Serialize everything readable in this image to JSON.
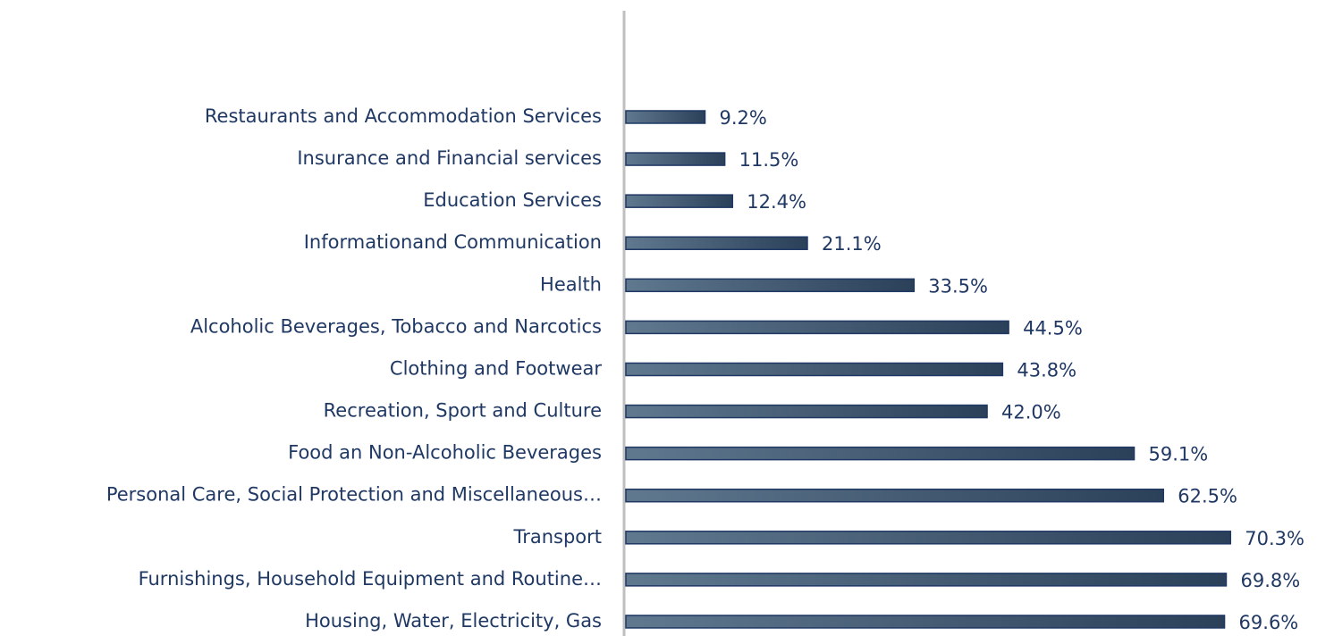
{
  "chart_data": {
    "type": "bar",
    "orientation": "horizontal",
    "categories": [
      "Restaurants and Accommodation Services",
      "Insurance and Financial services",
      "Education Services",
      "Informationand Communication",
      "Health",
      "Alcoholic Beverages, Tobacco and Narcotics",
      "Clothing and Footwear",
      "Recreation, Sport and Culture",
      "Food an Non-Alcoholic Beverages",
      "Personal Care, Social Protection and Miscellaneous…",
      "Transport",
      "Furnishings, Household Equipment and Routine…",
      "Housing, Water, Electricity, Gas"
    ],
    "values": [
      9.2,
      11.5,
      12.4,
      21.1,
      33.5,
      44.5,
      43.8,
      42.0,
      59.1,
      62.5,
      70.3,
      69.8,
      69.6
    ],
    "value_labels": [
      "9.2%",
      "11.5%",
      "12.4%",
      "21.1%",
      "33.5%",
      "44.5%",
      "43.8%",
      "42.0%",
      "59.1%",
      "62.5%",
      "70.3%",
      "69.8%",
      "69.6%"
    ],
    "color": "#1f3864"
  }
}
